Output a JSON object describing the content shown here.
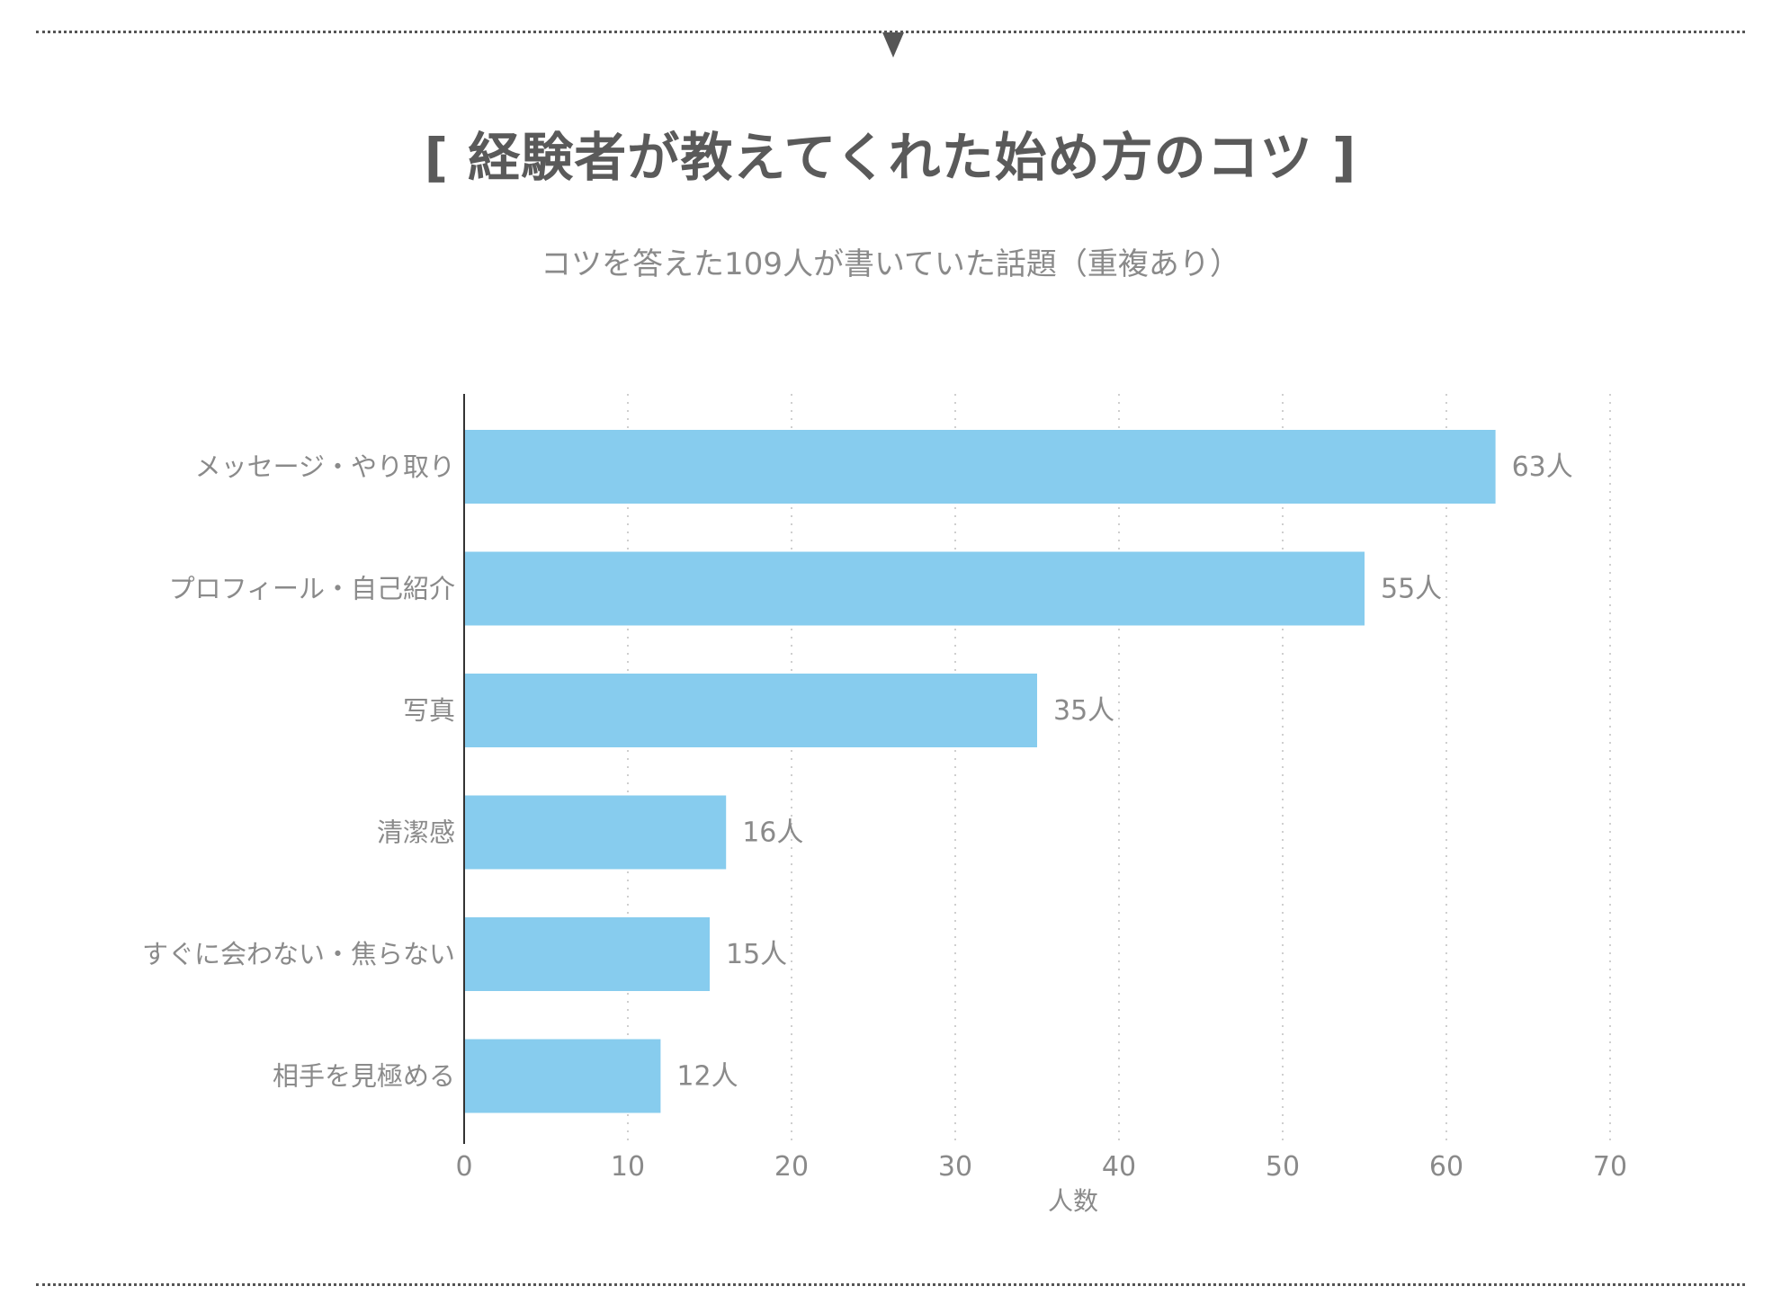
{
  "header": {
    "title": "[ 経験者が教えてくれた始め方のコツ ]",
    "subtitle": "コツを答えた109人が書いていた話題（重複あり）"
  },
  "colors": {
    "bar": "#87CCEE",
    "text": "#8a8a8a",
    "title": "#5a5a5a",
    "grid": "#cfcfcf",
    "axis": "#333333"
  },
  "chart_data": {
    "type": "bar",
    "orientation": "horizontal",
    "categories": [
      "メッセージ・やり取り",
      "プロフィール・自己紹介",
      "写真",
      "清潔感",
      "すぐに会わない・焦らない",
      "相手を見極める"
    ],
    "values": [
      63,
      55,
      35,
      16,
      15,
      12
    ],
    "value_labels": [
      "63人",
      "55人",
      "35人",
      "16人",
      "15人",
      "12人"
    ],
    "xlabel": "人数",
    "ylabel": "",
    "xlim": [
      0,
      70
    ],
    "xticks": [
      "0",
      "10",
      "20",
      "30",
      "40",
      "50",
      "60",
      "70"
    ],
    "grid": "vertical dotted",
    "legend": "none"
  }
}
